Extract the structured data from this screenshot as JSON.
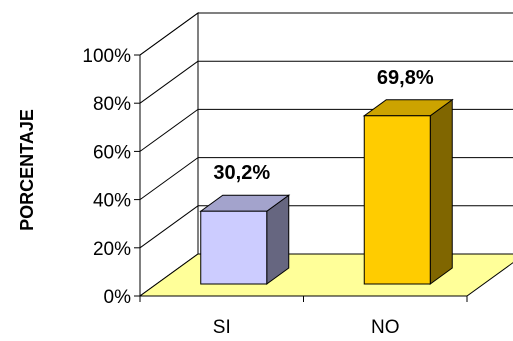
{
  "chart_data": {
    "type": "bar",
    "three_d": true,
    "categories": [
      "SI",
      "NO"
    ],
    "values": [
      30.2,
      69.8
    ],
    "data_labels": [
      "30,2%",
      "69,8%"
    ],
    "ylabel": "PORCENTAJE",
    "ylim": [
      0,
      100
    ],
    "yticks": [
      "0%",
      "20%",
      "40%",
      "60%",
      "80%",
      "100%"
    ],
    "grid": true,
    "legend": "none",
    "colors": {
      "bars": [
        "#CCCCFF",
        "#FFCC00"
      ],
      "floor": "#FFFF99",
      "grid": "#000000"
    }
  }
}
